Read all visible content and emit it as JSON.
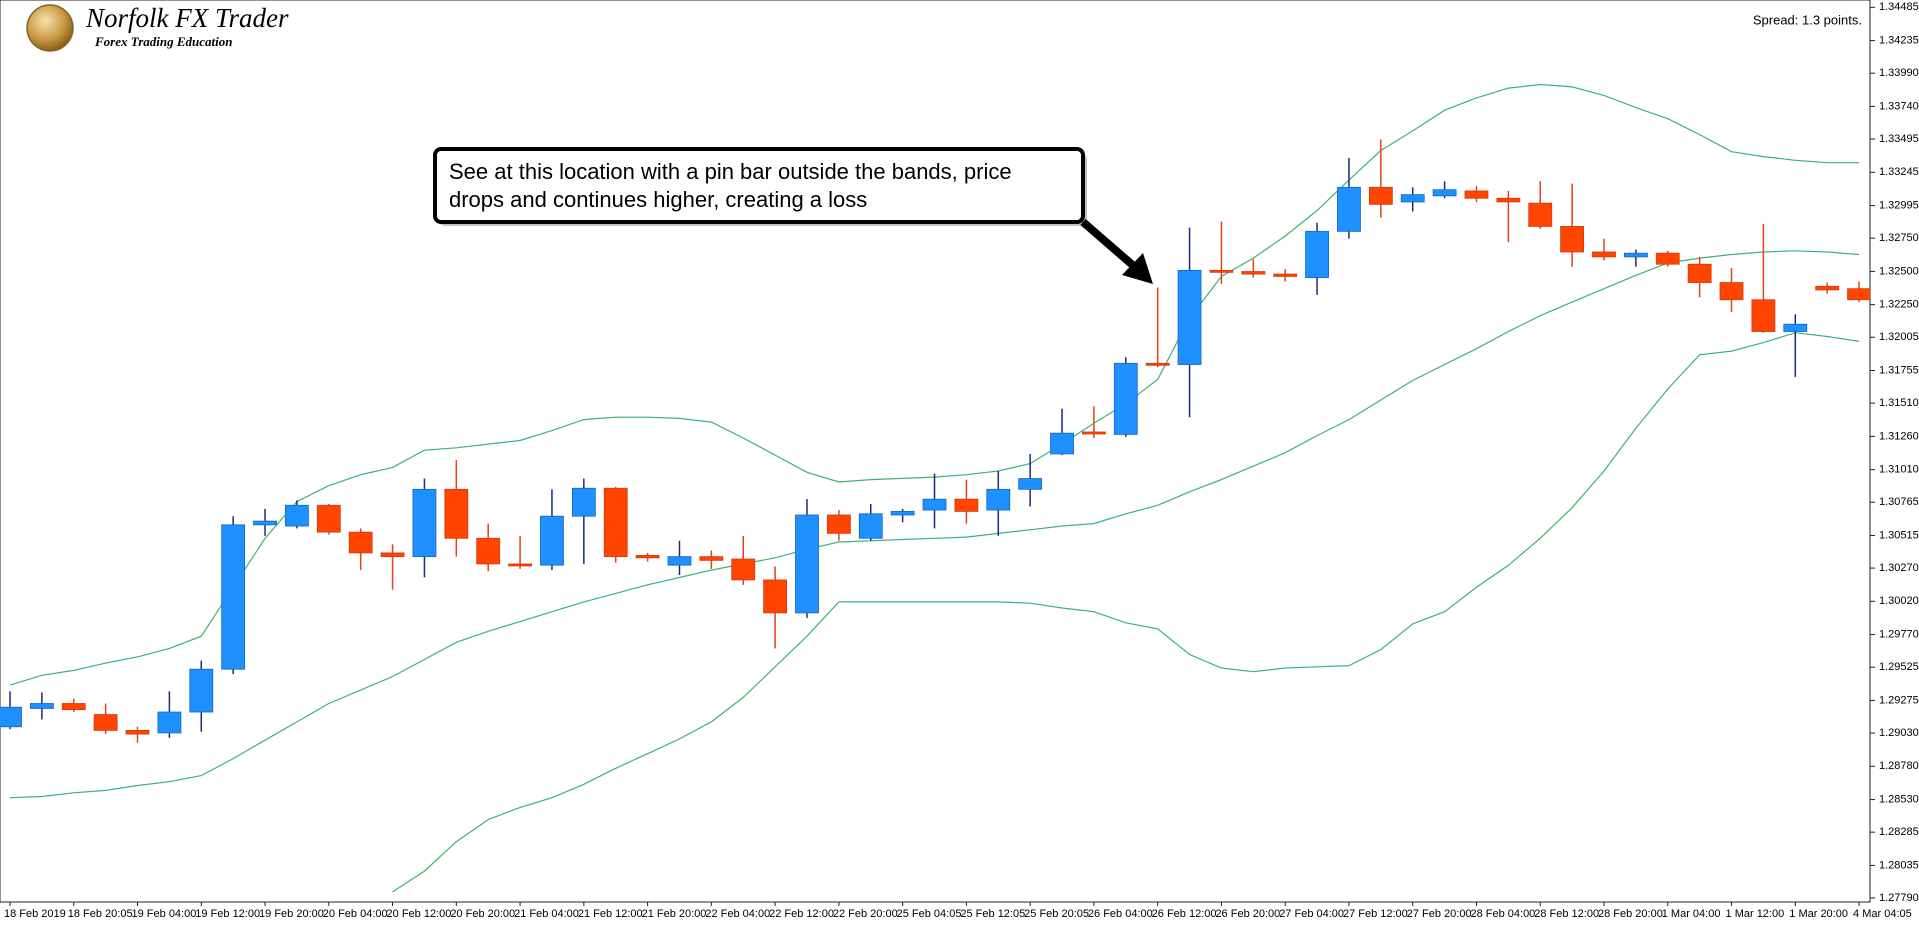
{
  "logo": {
    "title": "Norfolk FX Trader",
    "subtitle": "Forex Trading Education"
  },
  "spread": "Spread: 1.3 points.",
  "chart_data": {
    "type": "candlestick",
    "annotation": [
      "See at this location with a pin bar outside the bands, price",
      "drops and continues higher, creating a loss"
    ],
    "categories": [
      "18 Feb 2019",
      null,
      "18 Feb 20:05",
      null,
      "19 Feb 04:00",
      null,
      "19 Feb 12:00",
      null,
      "19 Feb 20:00",
      null,
      "20 Feb 04:00",
      null,
      "20 Feb 12:00",
      null,
      "20 Feb 20:00",
      null,
      "21 Feb 04:00",
      null,
      "21 Feb 12:00",
      null,
      "21 Feb 20:00",
      null,
      "22 Feb 04:00",
      null,
      "22 Feb 12:00",
      null,
      "22 Feb 20:00",
      null,
      "25 Feb 04:05",
      null,
      "25 Feb 12:05",
      null,
      "25 Feb 20:05",
      null,
      "26 Feb 04:00",
      null,
      "26 Feb 12:00",
      null,
      "26 Feb 20:00",
      null,
      "27 Feb 04:00",
      null,
      "27 Feb 12:00",
      null,
      "27 Feb 20:00",
      null,
      "28 Feb 04:00",
      null,
      "28 Feb 12:00",
      null,
      "28 Feb 20:00",
      null,
      "1 Mar 04:00",
      null,
      "1 Mar 12:00",
      null,
      "1 Mar 20:00",
      null,
      "4 Mar 04:05"
    ],
    "open": [
      1.29077,
      1.29215,
      1.29252,
      1.29169,
      1.2905,
      1.29031,
      1.29188,
      1.2951,
      1.30595,
      1.30586,
      1.30742,
      1.3054,
      1.30384,
      1.30356,
      1.30862,
      1.30494,
      1.30301,
      1.30292,
      1.3066,
      1.3087,
      1.30365,
      1.30292,
      1.30356,
      1.30338,
      1.30181,
      1.29933,
      1.30669,
      1.30494,
      1.30669,
      1.30706,
      1.30788,
      1.30706,
      1.30862,
      1.31128,
      1.31293,
      1.31275,
      1.31809,
      1.318,
      1.32508,
      1.32499,
      1.3248,
      1.32453,
      1.32801,
      1.33132,
      1.33022,
      1.33068,
      1.33105,
      1.3305,
      1.33013,
      1.32838,
      1.32646,
      1.32609,
      1.32637,
      1.32554,
      1.32416,
      1.32287,
      1.32048,
      1.32388,
      1.3237
    ],
    "high": [
      1.29344,
      1.29335,
      1.29289,
      1.29252,
      1.29077,
      1.29344,
      1.29574,
      1.3066,
      1.30715,
      1.30779,
      1.30752,
      1.30568,
      1.30448,
      1.30943,
      1.31082,
      1.30604,
      1.30512,
      1.30862,
      1.30943,
      1.3088,
      1.30384,
      1.30476,
      1.30402,
      1.30512,
      1.30282,
      1.30788,
      1.30706,
      1.30752,
      1.30715,
      1.3098,
      1.30935,
      1.30999,
      1.31128,
      1.31468,
      1.31487,
      1.31855,
      1.32379,
      1.32829,
      1.32875,
      1.32591,
      1.32517,
      1.32866,
      1.33353,
      1.33491,
      1.33132,
      1.33178,
      1.33142,
      1.33105,
      1.33178,
      1.3316,
      1.32746,
      1.32664,
      1.32655,
      1.32609,
      1.32526,
      1.32857,
      1.32177,
      1.32416,
      1.32425
    ],
    "low": [
      1.29059,
      1.29132,
      1.29188,
      1.29022,
      1.28958,
      1.28994,
      1.2904,
      1.29473,
      1.30512,
      1.30568,
      1.30522,
      1.30255,
      1.30108,
      1.302,
      1.30356,
      1.30246,
      1.30264,
      1.30255,
      1.30301,
      1.3031,
      1.30319,
      1.30218,
      1.30264,
      1.30144,
      1.29666,
      1.29896,
      1.30476,
      1.30476,
      1.30614,
      1.30568,
      1.30604,
      1.30512,
      1.30733,
      1.31119,
      1.31247,
      1.31256,
      1.31781,
      1.31404,
      1.32407,
      1.32453,
      1.32425,
      1.32324,
      1.32746,
      1.32904,
      1.3295,
      1.3305,
      1.33022,
      1.32719,
      1.3282,
      1.32535,
      1.32581,
      1.32535,
      1.32535,
      1.32305,
      1.32195,
      1.32039,
      1.31707,
      1.32333,
      1.32269
    ],
    "close": [
      1.29224,
      1.29252,
      1.29206,
      1.2905,
      1.29022,
      1.29188,
      1.2951,
      1.30595,
      1.30623,
      1.30742,
      1.3054,
      1.30384,
      1.30356,
      1.30862,
      1.30494,
      1.30301,
      1.30292,
      1.3066,
      1.3087,
      1.30356,
      1.30347,
      1.30356,
      1.30328,
      1.30181,
      1.29933,
      1.30669,
      1.30531,
      1.30678,
      1.30696,
      1.30788,
      1.30696,
      1.30862,
      1.30943,
      1.31284,
      1.31284,
      1.31809,
      1.318,
      1.32508,
      1.32499,
      1.3248,
      1.32462,
      1.32801,
      1.33132,
      1.33004,
      1.33077,
      1.33114,
      1.3305,
      1.33022,
      1.32838,
      1.32646,
      1.32609,
      1.32637,
      1.32554,
      1.32416,
      1.32287,
      1.32048,
      1.32103,
      1.32361,
      1.32287
    ],
    "up_color": "#1e90ff",
    "down_color": "#ff4500",
    "up_wick_color": "#1a2a80",
    "down_wick_color": "#e8401c",
    "lines": [
      {
        "color": "#3cb371",
        "values": [
          1.2939,
          1.29464,
          1.29501,
          1.29556,
          1.29602,
          1.29666,
          1.29758,
          1.30126,
          1.30494,
          1.3077,
          1.30889,
          1.30972,
          1.31027,
          1.31156,
          1.31174,
          1.31202,
          1.31229,
          1.31303,
          1.31386,
          1.31404,
          1.31404,
          1.31395,
          1.31367,
          1.31248,
          1.31119,
          1.3099,
          1.30917,
          1.30935,
          1.30944,
          1.30954,
          1.30972,
          1.31,
          1.31055,
          1.31202,
          1.31358,
          1.31505,
          1.31689,
          1.32149,
          1.32462,
          1.326,
          1.32765,
          1.32958,
          1.33188,
          1.33409,
          1.33556,
          1.33712,
          1.33804,
          1.33878,
          1.33905,
          1.33887,
          1.33823,
          1.33731,
          1.33648,
          1.33528,
          1.334,
          1.33363,
          1.33335,
          1.33317,
          1.33317
        ]
      },
      {
        "color": "#3cb371",
        "values": [
          1.28544,
          1.28553,
          1.28581,
          1.28599,
          1.28636,
          1.28664,
          1.2871,
          1.28838,
          1.28976,
          1.29114,
          1.29252,
          1.29353,
          1.29455,
          1.29583,
          1.29712,
          1.29795,
          1.29868,
          1.29942,
          1.30016,
          1.3008,
          1.30144,
          1.30199,
          1.30255,
          1.30301,
          1.30347,
          1.30411,
          1.30466,
          1.30475,
          1.30485,
          1.30494,
          1.30503,
          1.30531,
          1.30558,
          1.30586,
          1.30604,
          1.30678,
          1.30742,
          1.30843,
          1.30935,
          1.31036,
          1.31137,
          1.31266,
          1.31386,
          1.31533,
          1.3168,
          1.318,
          1.31919,
          1.32048,
          1.32167,
          1.32269,
          1.3237,
          1.32471,
          1.32563,
          1.326,
          1.32627,
          1.32646,
          1.32655,
          1.32646,
          1.32627
        ]
      },
      {
        "color": "#3cb371",
        "values": [
          null,
          null,
          null,
          null,
          null,
          null,
          null,
          null,
          null,
          null,
          null,
          null,
          1.27836,
          1.27992,
          1.28213,
          1.28379,
          1.28471,
          1.28544,
          1.28645,
          1.28765,
          1.28875,
          1.28986,
          1.29114,
          1.29298,
          1.29528,
          1.29758,
          1.30016,
          1.30016,
          1.30016,
          1.30016,
          1.30016,
          1.30016,
          1.30006,
          1.2997,
          1.29942,
          1.29859,
          1.29813,
          1.2962,
          1.29519,
          1.29491,
          1.29519,
          1.29528,
          1.29537,
          1.29657,
          1.2985,
          1.29942,
          1.30126,
          1.30291,
          1.30494,
          1.30724,
          1.31,
          1.31321,
          1.31616,
          1.31873,
          1.31901,
          1.31965,
          1.32039,
          1.32011,
          1.31974
        ]
      }
    ],
    "ylim": [
      1.2776,
      1.3454
    ],
    "yticks": [
      1.34485,
      1.34235,
      {
        "value": 1.3399,
        "label": "1.33990"
      },
      {
        "value": 1.3374,
        "label": "1.33740"
      },
      1.33495,
      1.33245,
      1.32995,
      {
        "value": 1.3275,
        "label": "1.32750"
      },
      {
        "value": 1.325,
        "label": "1.32500"
      },
      {
        "value": 1.3225,
        "label": "1.32250"
      },
      1.32005,
      1.31755,
      {
        "value": 1.3151,
        "label": "1.31510"
      },
      {
        "value": 1.3126,
        "label": "1.31260"
      },
      {
        "value": 1.3101,
        "label": "1.31010"
      },
      1.30765,
      1.30515,
      {
        "value": 1.3027,
        "label": "1.30270"
      },
      {
        "value": 1.3002,
        "label": "1.30020"
      },
      {
        "value": 1.2977,
        "label": "1.29770"
      },
      1.29525,
      1.29275,
      {
        "value": 1.2903,
        "label": "1.29030"
      },
      {
        "value": 1.2878,
        "label": "1.28780"
      },
      {
        "value": 1.2853,
        "label": "1.28530"
      },
      1.28285,
      1.28035,
      {
        "value": 1.2779,
        "label": "1.27790"
      }
    ],
    "grid": false
  }
}
